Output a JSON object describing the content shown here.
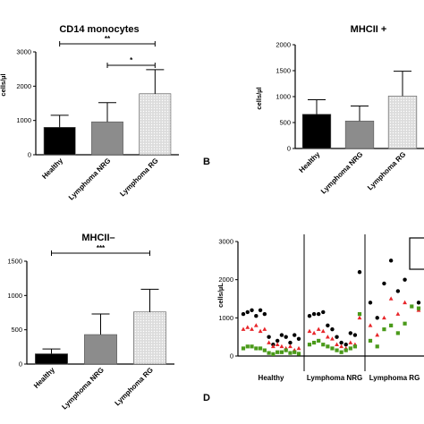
{
  "panel_letters": [
    "B",
    "D"
  ],
  "chart_data": [
    {
      "type": "bar",
      "title": "CD14 monocytes",
      "ylabel": "cells/µl",
      "categories": [
        "Healthy",
        "Lymphoma NRG",
        "Lymphoma RG"
      ],
      "values": [
        800,
        960,
        1780
      ],
      "errors": [
        350,
        560,
        700
      ],
      "ylim": [
        0,
        3000
      ],
      "yticks": [
        0,
        1000,
        2000,
        3000
      ],
      "significance": [
        {
          "from": 0,
          "to": 2,
          "label": "**"
        },
        {
          "from": 1,
          "to": 2,
          "label": "*"
        }
      ]
    },
    {
      "type": "bar",
      "title": "MHCII +",
      "ylabel": "cells/µl",
      "categories": [
        "Healthy",
        "Lymphoma NRG",
        "Lymphoma RG"
      ],
      "values": [
        660,
        530,
        1010
      ],
      "errors": [
        280,
        290,
        480
      ],
      "ylim": [
        0,
        2000
      ],
      "yticks": [
        0,
        500,
        1000,
        1500,
        2000
      ],
      "significance": []
    },
    {
      "type": "bar",
      "title": "MHCII–",
      "ylabel": "",
      "categories": [
        "Healthy",
        "Lymphoma NRG",
        "Lymphoma RG"
      ],
      "values": [
        150,
        430,
        760
      ],
      "errors": [
        70,
        300,
        330
      ],
      "ylim": [
        0,
        1500
      ],
      "yticks": [
        0,
        500,
        1000,
        1500
      ],
      "significance": [
        {
          "from": 0,
          "to": 2,
          "label": "***"
        }
      ]
    },
    {
      "type": "scatter",
      "title": "",
      "ylabel": "cells/µL",
      "ylim": [
        0,
        3000
      ],
      "yticks": [
        0,
        1000,
        2000,
        3000
      ],
      "groups": [
        "Healthy",
        "Lymphoma NRG",
        "Lymphoma RG"
      ],
      "series": [
        {
          "marker": "circle",
          "color": "#000000",
          "values": [
            1100,
            1150,
            1200,
            1050,
            1200,
            1100,
            500,
            300,
            400,
            550,
            500,
            350,
            550,
            450,
            1050,
            1100,
            1100,
            1150,
            800,
            700,
            500,
            350,
            300,
            600,
            550,
            2200,
            1400,
            1000,
            1900,
            2500,
            1700,
            2000,
            3000,
            1400
          ]
        },
        {
          "marker": "triangle",
          "color": "#e8262a",
          "values": [
            700,
            750,
            700,
            800,
            650,
            700,
            350,
            250,
            300,
            250,
            200,
            250,
            150,
            200,
            650,
            600,
            700,
            650,
            500,
            450,
            300,
            250,
            200,
            350,
            300,
            1000,
            800,
            550,
            1000,
            1500,
            1100,
            1400,
            2500,
            1200
          ]
        },
        {
          "marker": "square",
          "color": "#4a9a1a",
          "values": [
            200,
            250,
            250,
            200,
            200,
            150,
            80,
            50,
            100,
            100,
            150,
            80,
            100,
            60,
            300,
            350,
            400,
            300,
            250,
            200,
            150,
            100,
            150,
            200,
            250,
            1100,
            400,
            250,
            700,
            800,
            600,
            850,
            1300,
            1250
          ]
        }
      ]
    }
  ]
}
